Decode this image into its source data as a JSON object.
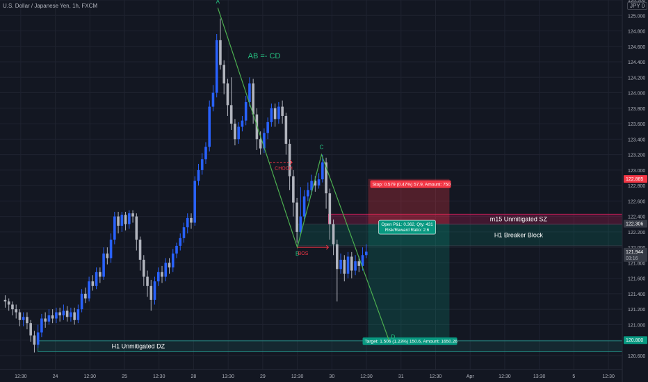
{
  "header": {
    "symbol_text": "U.S. Dollar / Japanese Yen, 1h, FXCM",
    "currency_badge": "JPY 0"
  },
  "colors": {
    "bg": "#131722",
    "grid": "#1f2330",
    "axis_text": "#b2b5be",
    "bull": "#2962ff",
    "bear": "#b2b5be",
    "pattern": "#4caf50",
    "pattern_text": "#26c281",
    "stop_zone": "#f23645",
    "target_zone": "#089981",
    "supply_zone": "#e91e63",
    "demand_zone": "#26a69a",
    "choch": "#f23645"
  },
  "chart_data": {
    "type": "candlestick",
    "symbol": "USDJPY",
    "timeframe": "1h",
    "y_axis": {
      "range": [
        120.42,
        125.2
      ],
      "ticks": [
        "125.200",
        "125.000",
        "124.800",
        "124.600",
        "124.400",
        "124.200",
        "124.000",
        "123.800",
        "123.600",
        "123.400",
        "123.200",
        "123.000",
        "122.800",
        "122.600",
        "122.400",
        "122.200",
        "122.000",
        "121.800",
        "121.600",
        "121.400",
        "121.200",
        "121.000",
        "120.800",
        "120.600"
      ]
    },
    "x_axis": {
      "range": [
        0,
        180
      ],
      "ticks": [
        {
          "label": "12:30",
          "x": 6
        },
        {
          "label": "24",
          "x": 16
        },
        {
          "label": "12:30",
          "x": 26
        },
        {
          "label": "25",
          "x": 36
        },
        {
          "label": "12:30",
          "x": 46
        },
        {
          "label": "28",
          "x": 56
        },
        {
          "label": "13:30",
          "x": 66
        },
        {
          "label": "29",
          "x": 76
        },
        {
          "label": "12:30",
          "x": 86
        },
        {
          "label": "30",
          "x": 96
        },
        {
          "label": "12:30",
          "x": 106
        },
        {
          "label": "31",
          "x": 116
        },
        {
          "label": "12:30",
          "x": 126
        },
        {
          "label": "Apr",
          "x": 136
        },
        {
          "label": "12:30",
          "x": 146
        },
        {
          "label": "13:30",
          "x": 156
        },
        {
          "label": "5",
          "x": 166
        },
        {
          "label": "12:30",
          "x": 176
        }
      ]
    },
    "price_labels": [
      {
        "value": 122.885,
        "text": "122.885",
        "color": "#f23645"
      },
      {
        "value": 122.306,
        "text": "122.306",
        "color": "#363a45"
      },
      {
        "value": 121.944,
        "text": "121.944",
        "sub": "03:16",
        "color": "#363a45"
      },
      {
        "value": 120.8,
        "text": "120.800",
        "color": "#089981"
      }
    ],
    "candles": [
      [
        121.32,
        121.3,
        121.38,
        121.22
      ],
      [
        121.3,
        121.26,
        121.34,
        121.18
      ],
      [
        121.26,
        121.2,
        121.3,
        121.12
      ],
      [
        121.2,
        121.16,
        121.26,
        121.08
      ],
      [
        121.16,
        121.06,
        121.2,
        120.98
      ],
      [
        121.06,
        121.1,
        121.16,
        120.98
      ],
      [
        121.1,
        121.02,
        121.16,
        120.94
      ],
      [
        121.02,
        120.86,
        121.06,
        120.78
      ],
      [
        120.86,
        120.74,
        120.92,
        120.64
      ],
      [
        120.74,
        120.9,
        121.0,
        120.7
      ],
      [
        120.9,
        121.08,
        121.14,
        120.84
      ],
      [
        121.08,
        121.04,
        121.16,
        120.96
      ],
      [
        121.04,
        121.12,
        121.2,
        121.0
      ],
      [
        121.12,
        121.08,
        121.2,
        121.02
      ],
      [
        121.08,
        121.16,
        121.22,
        121.02
      ],
      [
        121.16,
        121.12,
        121.22,
        121.04
      ],
      [
        121.12,
        121.18,
        121.26,
        121.06
      ],
      [
        121.18,
        121.1,
        121.24,
        121.04
      ],
      [
        121.1,
        121.16,
        121.22,
        121.04
      ],
      [
        121.16,
        121.06,
        121.22,
        121.0
      ],
      [
        121.06,
        121.2,
        121.26,
        121.02
      ],
      [
        121.2,
        121.4,
        121.46,
        121.16
      ],
      [
        121.4,
        121.34,
        121.48,
        121.28
      ],
      [
        121.34,
        121.56,
        121.62,
        121.3
      ],
      [
        121.56,
        121.5,
        121.64,
        121.44
      ],
      [
        121.5,
        121.68,
        121.74,
        121.46
      ],
      [
        121.68,
        121.62,
        121.74,
        121.54
      ],
      [
        121.62,
        121.92,
        122.0,
        121.58
      ],
      [
        121.92,
        121.86,
        122.0,
        121.78
      ],
      [
        121.86,
        122.1,
        122.18,
        121.8
      ],
      [
        122.1,
        122.4,
        122.46,
        122.04
      ],
      [
        122.4,
        122.28,
        122.46,
        122.18
      ],
      [
        122.28,
        122.42,
        122.46,
        122.2
      ],
      [
        122.42,
        122.3,
        122.46,
        122.22
      ],
      [
        122.3,
        122.44,
        122.48,
        122.24
      ],
      [
        122.44,
        122.4,
        122.48,
        122.32
      ],
      [
        122.4,
        122.1,
        122.44,
        121.96
      ],
      [
        122.1,
        121.84,
        122.14,
        121.7
      ],
      [
        121.84,
        121.62,
        121.9,
        121.5
      ],
      [
        121.62,
        121.5,
        121.7,
        121.36
      ],
      [
        121.5,
        121.32,
        121.58,
        121.18
      ],
      [
        121.32,
        121.56,
        121.62,
        121.26
      ],
      [
        121.56,
        121.68,
        121.74,
        121.5
      ],
      [
        121.68,
        121.62,
        121.76,
        121.54
      ],
      [
        121.62,
        121.8,
        121.86,
        121.56
      ],
      [
        121.8,
        121.74,
        121.86,
        121.66
      ],
      [
        121.74,
        121.92,
        121.98,
        121.68
      ],
      [
        121.92,
        122.02,
        122.06,
        121.86
      ],
      [
        122.02,
        122.12,
        122.18,
        121.96
      ],
      [
        122.12,
        122.26,
        122.32,
        122.06
      ],
      [
        122.26,
        122.38,
        122.44,
        122.18
      ],
      [
        122.38,
        122.32,
        122.44,
        122.24
      ],
      [
        122.32,
        122.86,
        122.92,
        122.28
      ],
      [
        122.86,
        123.0,
        123.08,
        122.8
      ],
      [
        123.0,
        123.14,
        123.22,
        122.94
      ],
      [
        123.14,
        123.3,
        123.36,
        123.08
      ],
      [
        123.3,
        123.82,
        123.9,
        123.24
      ],
      [
        123.82,
        124.0,
        124.1,
        123.76
      ],
      [
        124.0,
        124.68,
        124.76,
        123.94
      ],
      [
        124.68,
        124.36,
        124.96,
        124.3
      ],
      [
        124.36,
        124.12,
        124.42,
        123.98
      ],
      [
        124.12,
        123.84,
        124.18,
        123.7
      ],
      [
        123.84,
        123.6,
        124.2,
        123.52
      ],
      [
        123.6,
        123.4,
        123.66,
        123.32
      ],
      [
        123.4,
        123.56,
        123.62,
        123.34
      ],
      [
        123.56,
        123.64,
        123.7,
        123.5
      ],
      [
        123.64,
        123.88,
        123.96,
        123.58
      ],
      [
        123.88,
        124.12,
        124.2,
        123.82
      ],
      [
        124.12,
        123.72,
        124.18,
        123.6
      ],
      [
        123.72,
        123.4,
        123.8,
        123.26
      ],
      [
        123.4,
        123.28,
        123.5,
        123.2
      ],
      [
        123.28,
        123.48,
        123.54,
        123.22
      ],
      [
        123.48,
        123.62,
        123.68,
        123.4
      ],
      [
        123.62,
        123.8,
        123.86,
        123.56
      ],
      [
        123.8,
        123.66,
        123.86,
        123.56
      ],
      [
        123.66,
        123.82,
        123.88,
        123.6
      ],
      [
        123.82,
        123.7,
        123.9,
        123.6
      ],
      [
        123.7,
        123.34,
        123.74,
        123.2
      ],
      [
        123.34,
        122.92,
        123.4,
        122.74
      ],
      [
        122.92,
        122.58,
        123.0,
        122.4
      ],
      [
        122.58,
        122.2,
        122.64,
        122.06
      ],
      [
        122.2,
        122.4,
        122.78,
        122.16
      ],
      [
        122.4,
        122.66,
        122.74,
        122.36
      ],
      [
        122.66,
        122.74,
        122.84,
        122.6
      ],
      [
        122.74,
        122.86,
        122.94,
        122.68
      ],
      [
        122.86,
        122.8,
        122.92,
        122.72
      ],
      [
        122.8,
        122.88,
        122.96,
        122.76
      ],
      [
        122.88,
        123.1,
        123.2,
        122.84
      ],
      [
        123.1,
        122.7,
        123.16,
        122.5
      ],
      [
        122.7,
        122.3,
        122.76,
        122.1
      ],
      [
        122.3,
        122.04,
        122.36,
        121.9
      ],
      [
        122.04,
        121.72,
        122.1,
        121.3
      ],
      [
        121.72,
        121.84,
        121.92,
        121.66
      ],
      [
        121.84,
        121.66,
        121.9,
        121.56
      ],
      [
        121.66,
        121.88,
        121.94,
        121.6
      ],
      [
        121.88,
        121.7,
        121.94,
        121.6
      ],
      [
        121.7,
        121.82,
        121.9,
        121.64
      ],
      [
        121.82,
        121.76,
        121.88,
        121.68
      ],
      [
        121.76,
        121.9,
        122.0,
        121.7
      ],
      [
        121.9,
        121.944,
        122.04,
        121.86
      ]
    ],
    "pattern_points": [
      {
        "label": "A",
        "x": 63,
        "y": 125.1
      },
      {
        "label": "B",
        "x": 86,
        "y": 122.0
      },
      {
        "label": "C",
        "x": 93,
        "y": 123.2
      },
      {
        "label": "D",
        "x": 112.5,
        "y": 120.8
      }
    ],
    "pattern_title": "AB =- CD",
    "annotations": [
      {
        "text": "CHOCH",
        "x1": 78,
        "x2": 84.5,
        "y": 123.1
      },
      {
        "text": "BOS",
        "x1": 86,
        "x2": 95,
        "y": 122.0
      }
    ],
    "zones": [
      {
        "name": "m15 Unmitigated SZ",
        "x1": 95,
        "x2": 180,
        "y1": 122.43,
        "y2": 122.3,
        "kind": "supply"
      },
      {
        "name": "H1 Breaker Block",
        "x1": 86,
        "x2": 180,
        "y1": 122.3,
        "y2": 122.02,
        "kind": "breaker"
      },
      {
        "name": "H1 Unmitigated DZ",
        "x1": 11,
        "x2": 180,
        "y1": 120.79,
        "y2": 120.65,
        "kind": "demand"
      }
    ],
    "position": {
      "x1": 106.5,
      "x2": 130,
      "entry": 122.306,
      "stop": 122.885,
      "target": 120.8,
      "stop_text": "Stop: 0.579 (0.47%) 57.9, Amount: 750",
      "open_text": "Open P&L: 0.362, Qty: 431",
      "rr_text": "Risk/Reward Ratio: 2.6",
      "target_text": "Target: 1.506 (1.23%) 150.6, Amount: 1650.26"
    }
  }
}
